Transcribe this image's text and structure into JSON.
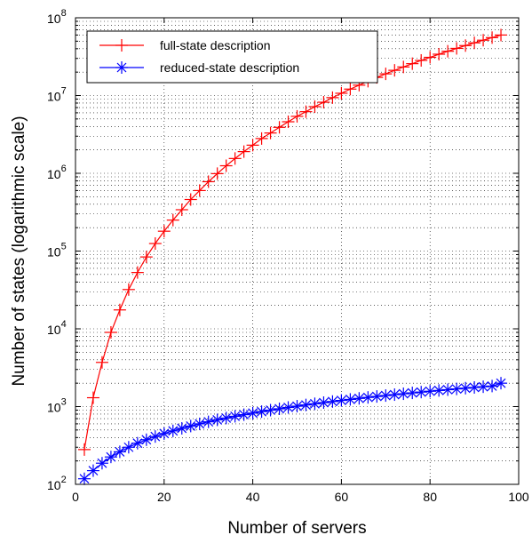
{
  "chart_data": {
    "type": "line",
    "xlabel": "Number of servers",
    "ylabel": "Number of states (logarithmic scale)",
    "xlim": [
      0,
      100
    ],
    "ylim": [
      100,
      100000000
    ],
    "yscale": "log",
    "grid": true,
    "legend_position": "top-left",
    "x_ticks": [
      0,
      20,
      40,
      60,
      80,
      100
    ],
    "x_tick_labels": [
      "0",
      "20",
      "40",
      "60",
      "80",
      "100"
    ],
    "y_tick_exponents": [
      2,
      3,
      4,
      5,
      6,
      7,
      8
    ],
    "y_tick_base": "10",
    "x": [
      2,
      4,
      6,
      8,
      10,
      12,
      14,
      16,
      18,
      20,
      22,
      24,
      26,
      28,
      30,
      32,
      34,
      36,
      38,
      40,
      42,
      44,
      46,
      48,
      50,
      52,
      54,
      56,
      58,
      60,
      62,
      64,
      66,
      68,
      70,
      72,
      74,
      76,
      78,
      80,
      82,
      84,
      86,
      88,
      90,
      92,
      94,
      96
    ],
    "series": [
      {
        "name": "full-state description",
        "color": "#ff0000",
        "marker": "plus",
        "values": [
          280,
          1300,
          3700,
          9000,
          17500,
          32000,
          53000,
          84000,
          125000,
          180000,
          250000,
          340000,
          460000,
          600000,
          780000,
          990000,
          1250000,
          1550000,
          1900000,
          2300000,
          2800000,
          3300000,
          3900000,
          4600000,
          5400000,
          6200000,
          7200000,
          8200000,
          9400000,
          10700000,
          12100000,
          13600000,
          15300000,
          17100000,
          19000000,
          21100000,
          23300000,
          25700000,
          28300000,
          31000000,
          34000000,
          37100000,
          40400000,
          43900000,
          47600000,
          51500000,
          55600000,
          60000000
        ]
      },
      {
        "name": "reduced-state description",
        "color": "#0000ff",
        "marker": "asterisk",
        "values": [
          118,
          150,
          187,
          225,
          262,
          300,
          338,
          375,
          412,
          450,
          487,
          525,
          562,
          600,
          637,
          675,
          712,
          750,
          787,
          825,
          862,
          900,
          937,
          975,
          1012,
          1050,
          1087,
          1125,
          1162,
          1200,
          1237,
          1275,
          1312,
          1350,
          1387,
          1425,
          1462,
          1500,
          1537,
          1575,
          1612,
          1650,
          1687,
          1725,
          1762,
          1800,
          1837,
          2000
        ]
      }
    ]
  }
}
